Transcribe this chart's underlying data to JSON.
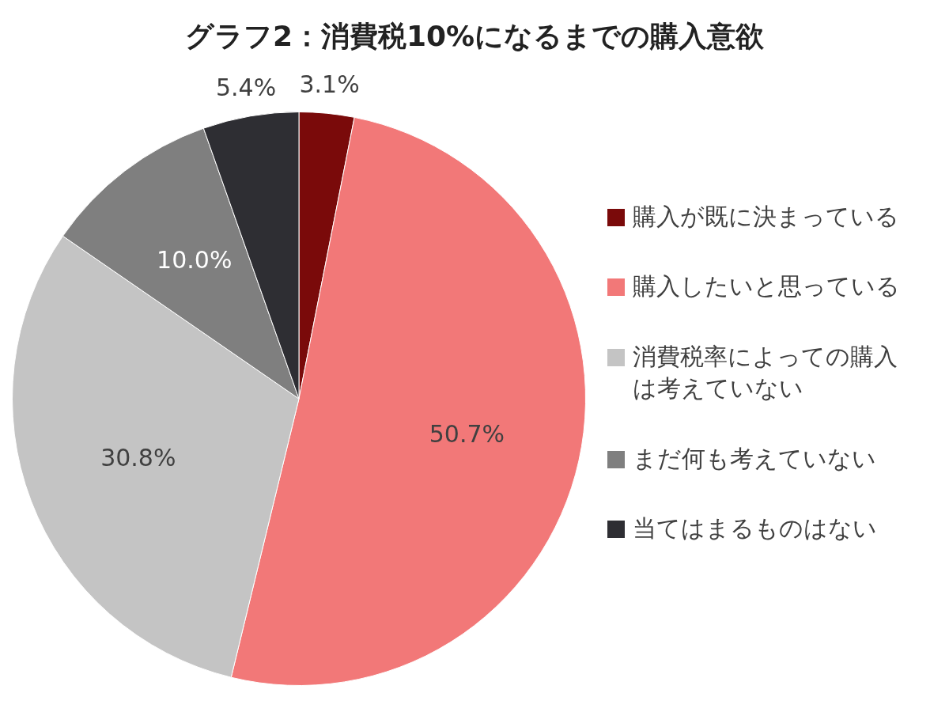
{
  "chart_data": {
    "type": "pie",
    "title": "グラフ2：消費税10%になるまでの購入意欲",
    "categories": [
      "購入が既に決まっている",
      "購入したいと思っている",
      "消費税率によっての購入は考えていない",
      "まだ何も考えていない",
      "当てはまるものはない"
    ],
    "values": [
      3.1,
      50.7,
      30.8,
      10.0,
      5.4
    ],
    "colors": [
      "#7a0a0a",
      "#f27878",
      "#c4c4c4",
      "#7f7f7f",
      "#2e2e33"
    ],
    "value_labels": [
      "3.1%",
      "50.7%",
      "30.8%",
      "10.0%",
      "5.4%"
    ],
    "legend": "right"
  }
}
